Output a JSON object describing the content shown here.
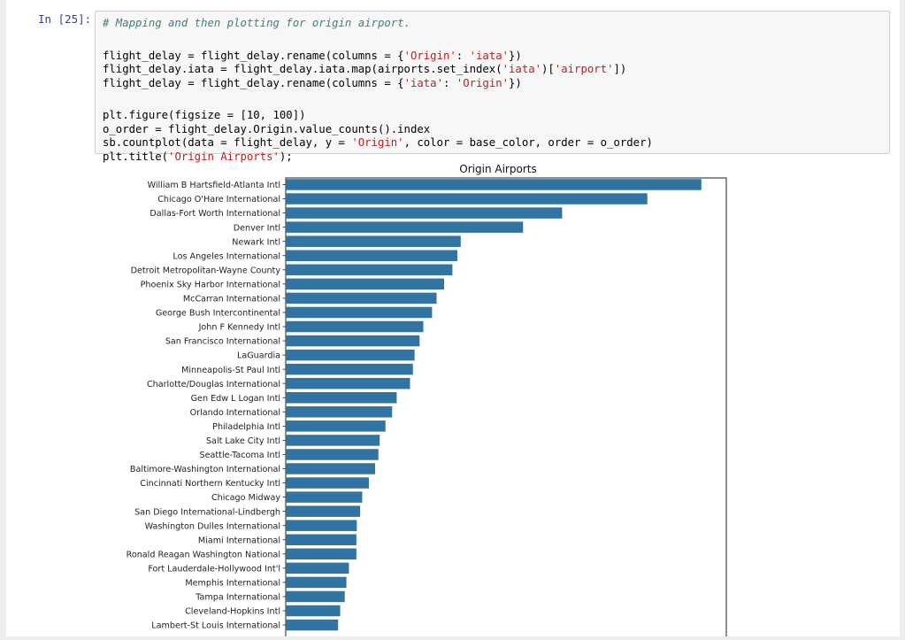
{
  "cell": {
    "prompt": "In [25]:",
    "code_lines": [
      {
        "type": "comment",
        "text": "# Mapping and then plotting for origin airport."
      },
      {
        "type": "blank",
        "text": ""
      },
      {
        "type": "code",
        "parts": [
          {
            "t": "flight_delay = flight_delay.rename(columns = {"
          },
          {
            "s": "'Origin'"
          },
          {
            "t": ": "
          },
          {
            "s": "'iata'"
          },
          {
            "t": "})"
          }
        ]
      },
      {
        "type": "code",
        "parts": [
          {
            "t": "flight_delay.iata = flight_delay.iata.map(airports.set_index("
          },
          {
            "s": "'iata'"
          },
          {
            "t": ")["
          },
          {
            "s": "'airport'"
          },
          {
            "t": "])"
          }
        ]
      },
      {
        "type": "code",
        "parts": [
          {
            "t": "flight_delay = flight_delay.rename(columns = {"
          },
          {
            "s": "'iata'"
          },
          {
            "t": ": "
          },
          {
            "s": "'Origin'"
          },
          {
            "t": "})"
          }
        ]
      },
      {
        "type": "blank",
        "text": ""
      },
      {
        "type": "code",
        "parts": [
          {
            "t": "plt.figure(figsize = [10, 100])"
          }
        ]
      },
      {
        "type": "code",
        "parts": [
          {
            "t": "o_order = flight_delay.Origin.value_counts().index"
          }
        ]
      },
      {
        "type": "code",
        "parts": [
          {
            "t": "sb.countplot(data = flight_delay, y = "
          },
          {
            "s": "'Origin'"
          },
          {
            "t": ", color = base_color, order = o_order)"
          }
        ]
      },
      {
        "type": "code",
        "parts": [
          {
            "t": "plt.title("
          },
          {
            "s": "'Origin Airports'"
          },
          {
            "t": ");"
          }
        ]
      }
    ]
  },
  "colors": {
    "bar": "#3274a1",
    "comment": "#408080",
    "string": "#ba2121",
    "prompt": "#303f9f"
  },
  "chart_data": {
    "type": "bar",
    "orientation": "horizontal",
    "title": "Origin Airports",
    "xlabel": "",
    "ylabel": "",
    "categories": [
      "William B Hartsfield-Atlanta Intl",
      "Chicago O'Hare International",
      "Dallas-Fort Worth International",
      "Denver Intl",
      "Newark Intl",
      "Los Angeles International",
      "Detroit Metropolitan-Wayne County",
      "Phoenix Sky Harbor International",
      "McCarran International",
      "George Bush Intercontinental",
      "John F Kennedy Intl",
      "San Francisco International",
      "LaGuardia",
      "Minneapolis-St Paul Intl",
      "Charlotte/Douglas International",
      "Gen Edw L Logan Intl",
      "Orlando International",
      "Philadelphia Intl",
      "Salt Lake City Intl",
      "Seattle-Tacoma Intl",
      "Baltimore-Washington International",
      "Cincinnati Northern Kentucky Intl",
      "Chicago Midway",
      "San Diego International-Lindbergh",
      "Washington Dulles International",
      "Miami International",
      "Ronald Reagan Washington National",
      "Fort Lauderdale-Hollywood Int'l",
      "Memphis International",
      "Tampa International",
      "Cleveland-Hopkins Intl",
      "Lambert-St Louis International"
    ],
    "values": [
      1000,
      870,
      665,
      571,
      421,
      413,
      401,
      381,
      363,
      352,
      331,
      322,
      310,
      306,
      299,
      267,
      256,
      240,
      226,
      223,
      215,
      200,
      184,
      179,
      171,
      170,
      170,
      152,
      146,
      142,
      131,
      126
    ],
    "xlim": [
      0,
      1060
    ],
    "grid": false,
    "legend": "none"
  }
}
